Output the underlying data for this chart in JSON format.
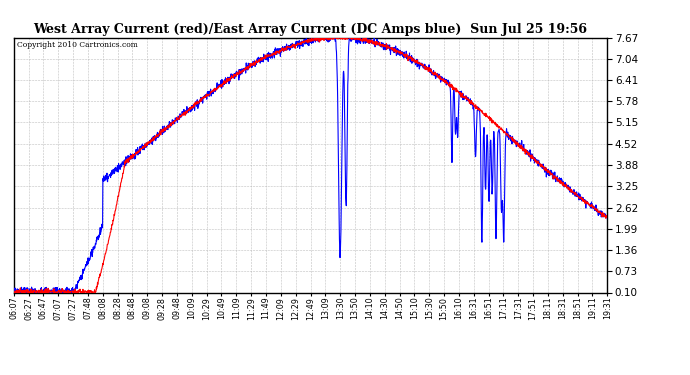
{
  "title": "West Array Current (red)/East Array Current (DC Amps blue)  Sun Jul 25 19:56",
  "copyright": "Copyright 2010 Cartronics.com",
  "background_color": "#ffffff",
  "plot_bg_color": "#ffffff",
  "grid_color": "#b0b0b0",
  "yticks": [
    0.1,
    0.73,
    1.36,
    1.99,
    2.62,
    3.25,
    3.88,
    4.52,
    5.15,
    5.78,
    6.41,
    7.04,
    7.67
  ],
  "ymin": 0.1,
  "ymax": 7.67,
  "xtick_labels": [
    "06:07",
    "06:27",
    "06:47",
    "07:07",
    "07:27",
    "07:48",
    "08:08",
    "08:28",
    "08:48",
    "09:08",
    "09:28",
    "09:48",
    "10:09",
    "10:29",
    "10:49",
    "11:09",
    "11:29",
    "11:49",
    "12:09",
    "12:29",
    "12:49",
    "13:09",
    "13:30",
    "13:50",
    "14:10",
    "14:30",
    "14:50",
    "15:10",
    "15:30",
    "15:50",
    "16:10",
    "16:31",
    "16:51",
    "17:11",
    "17:31",
    "17:51",
    "18:11",
    "18:31",
    "18:51",
    "19:11",
    "19:31"
  ],
  "red_line_color": "#ff0000",
  "blue_line_color": "#0000ff",
  "line_width": 0.8
}
